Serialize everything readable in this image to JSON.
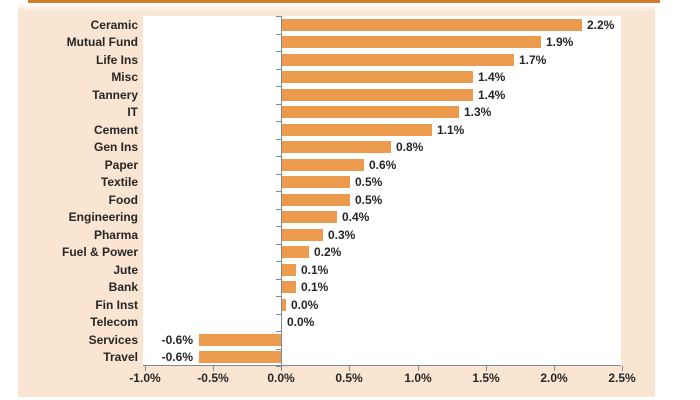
{
  "colors": {
    "banner": "#CE7D31",
    "panel_bg": "#FAE5D2",
    "plot_bg": "#FFFFFF",
    "bar": "#EC9A4E",
    "axis": "#7E8A96",
    "text": "#262626"
  },
  "chart_data": {
    "type": "bar",
    "orientation": "horizontal",
    "title": "",
    "xlabel": "",
    "ylabel": "",
    "grid": false,
    "xlim": [
      -1.0,
      2.5
    ],
    "categories": [
      "Ceramic",
      "Mutual Fund",
      "Life Ins",
      "Misc",
      "Tannery",
      "IT",
      "Cement",
      "Gen Ins",
      "Paper",
      "Textile",
      "Food",
      "Engineering",
      "Pharma",
      "Fuel & Power",
      "Jute",
      "Bank",
      "Fin Inst",
      "Telecom",
      "Services",
      "Travel"
    ],
    "values": [
      2.2,
      1.9,
      1.7,
      1.4,
      1.4,
      1.3,
      1.1,
      0.8,
      0.6,
      0.5,
      0.5,
      0.4,
      0.3,
      0.2,
      0.1,
      0.1,
      0.03,
      0.0,
      -0.6,
      -0.6
    ],
    "value_labels": [
      "2.2%",
      "1.9%",
      "1.7%",
      "1.4%",
      "1.4%",
      "1.3%",
      "1.1%",
      "0.8%",
      "0.6%",
      "0.5%",
      "0.5%",
      "0.4%",
      "0.3%",
      "0.2%",
      "0.1%",
      "0.1%",
      "0.0%",
      "0.0%",
      "-0.6%",
      "-0.6%"
    ],
    "x_tick_values": [
      -1.0,
      -0.5,
      0.0,
      0.5,
      1.0,
      1.5,
      2.0,
      2.5
    ],
    "x_tick_labels": [
      "-1.0%",
      "-0.5%",
      "0.0%",
      "0.5%",
      "1.0%",
      "1.5%",
      "2.0%",
      "2.5%"
    ]
  }
}
